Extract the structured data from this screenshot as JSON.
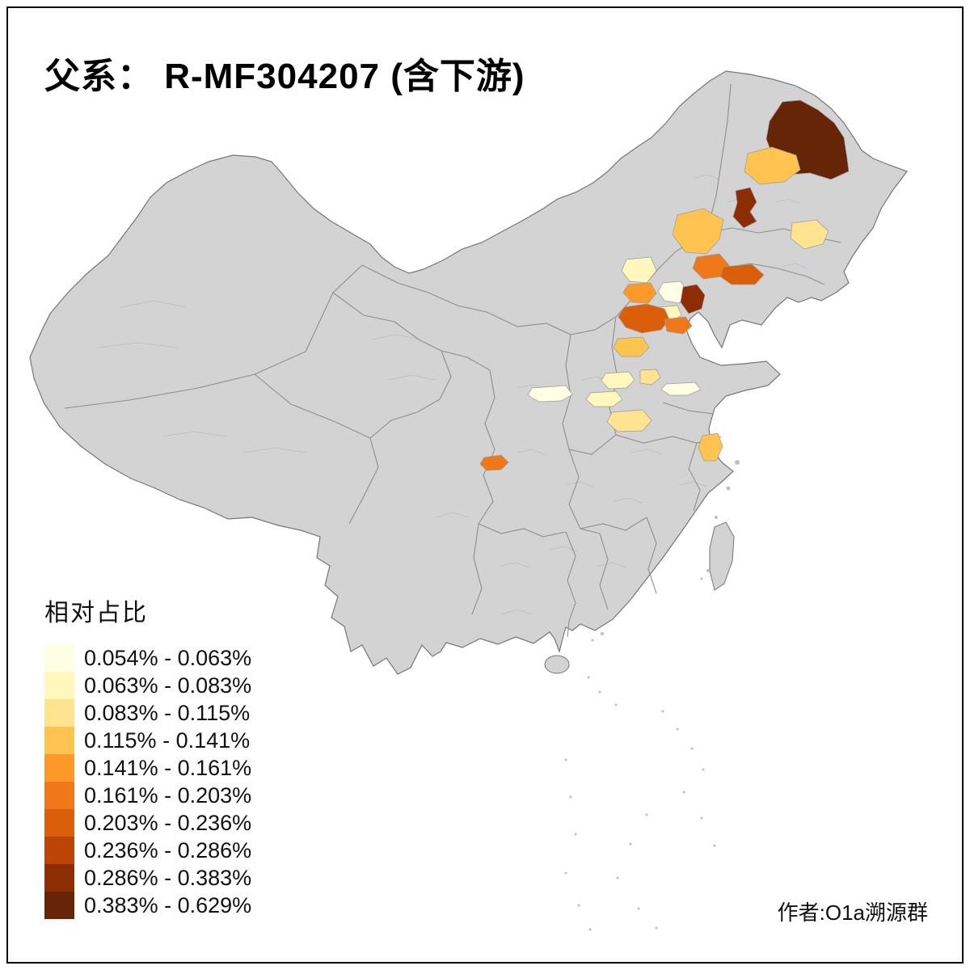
{
  "title": "父系： R-MF304207 (含下游)",
  "credit": "作者:O1a溯源群",
  "legend": {
    "title": "相对占比",
    "bins": [
      {
        "label": "0.054% - 0.063%",
        "color": "#FFFFE5"
      },
      {
        "label": "0.063% - 0.083%",
        "color": "#FFF7BC"
      },
      {
        "label": "0.083% - 0.115%",
        "color": "#FEE391"
      },
      {
        "label": "0.115% - 0.141%",
        "color": "#FEC44F"
      },
      {
        "label": "0.141% - 0.161%",
        "color": "#FE9929"
      },
      {
        "label": "0.161% - 0.203%",
        "color": "#F07818"
      },
      {
        "label": "0.203% - 0.236%",
        "color": "#DB5E0B"
      },
      {
        "label": "0.236% - 0.286%",
        "color": "#BC4404"
      },
      {
        "label": "0.286% - 0.383%",
        "color": "#8C2D04"
      },
      {
        "label": "0.383% - 0.629%",
        "color": "#662506"
      }
    ]
  },
  "map": {
    "land_color": "#D3D3D3",
    "national_border_color": "#767676",
    "province_border_color": "#8E8E8E",
    "prefecture_border_color": "#BDBDBD",
    "region_border_color": "#9A9A9A",
    "islet_color": "#BFBFBF",
    "regions": [
      {
        "id": "r1",
        "bin": 9
      },
      {
        "id": "r2",
        "bin": 3
      },
      {
        "id": "r3",
        "bin": 8
      },
      {
        "id": "r4",
        "bin": 2
      },
      {
        "id": "r5",
        "bin": 3
      },
      {
        "id": "r6",
        "bin": 5
      },
      {
        "id": "r7",
        "bin": 6
      },
      {
        "id": "r8",
        "bin": 1
      },
      {
        "id": "r9",
        "bin": 0
      },
      {
        "id": "r10",
        "bin": 1
      },
      {
        "id": "r11",
        "bin": 8
      },
      {
        "id": "r12",
        "bin": 4
      },
      {
        "id": "r13",
        "bin": 6
      },
      {
        "id": "r14",
        "bin": 5
      },
      {
        "id": "r15",
        "bin": 3
      },
      {
        "id": "r16",
        "bin": 0
      },
      {
        "id": "r17",
        "bin": 1
      },
      {
        "id": "r18",
        "bin": 2
      },
      {
        "id": "r19",
        "bin": 0
      },
      {
        "id": "r20",
        "bin": 1
      },
      {
        "id": "r21",
        "bin": 2
      },
      {
        "id": "r22",
        "bin": 5
      },
      {
        "id": "r23",
        "bin": 3
      }
    ]
  }
}
